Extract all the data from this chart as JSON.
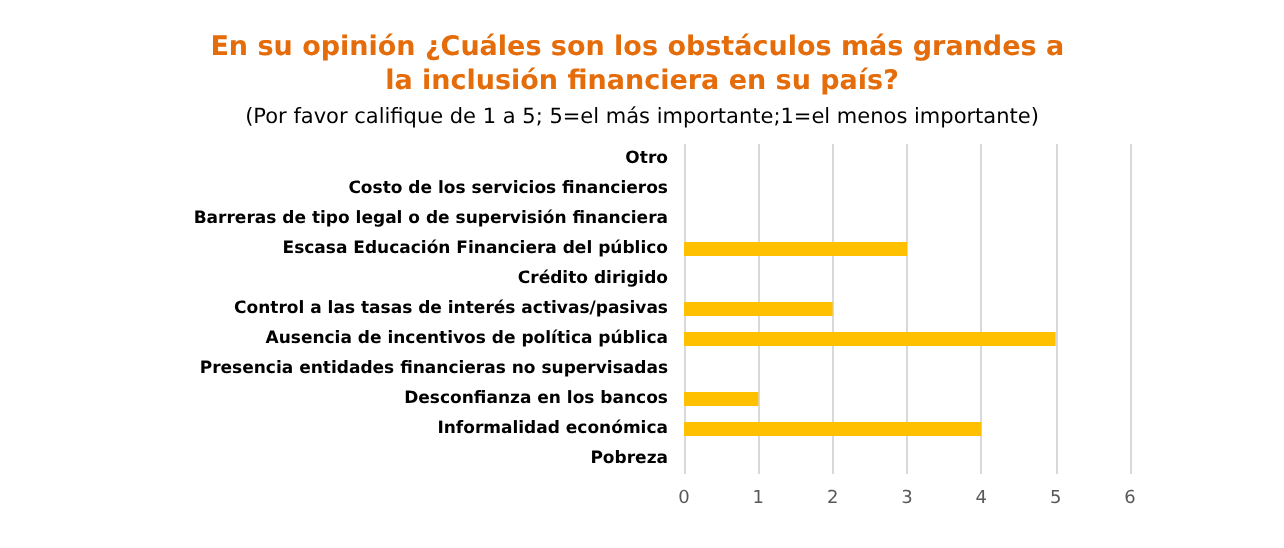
{
  "chart_data": {
    "type": "bar",
    "orientation": "horizontal",
    "title": "En su opinión ¿Cuáles son los obstáculos más grandes a la inclusión financiera en su país?",
    "subtitle": "(Por favor califique de 1 a 5; 5=el más importante;1=el menos importante)",
    "categories": [
      "Otro",
      "Costo de los servicios financieros",
      "Barreras de tipo legal o de supervisión financiera",
      "Escasa Educación Financiera del público",
      "Crédito dirigido",
      "Control a las tasas de interés activas/pasivas",
      "Ausencia de incentivos de política pública",
      "Presencia entidades financieras no supervisadas",
      "Desconfianza en los bancos",
      "Informalidad económica",
      "Pobreza"
    ],
    "values": [
      0,
      0,
      0,
      3,
      0,
      2,
      5,
      0,
      1,
      4,
      0
    ],
    "color": "#ffc000",
    "xlim": [
      0,
      6
    ],
    "xticks": [
      0,
      1,
      2,
      3,
      4,
      5,
      6
    ],
    "grid": "x"
  }
}
